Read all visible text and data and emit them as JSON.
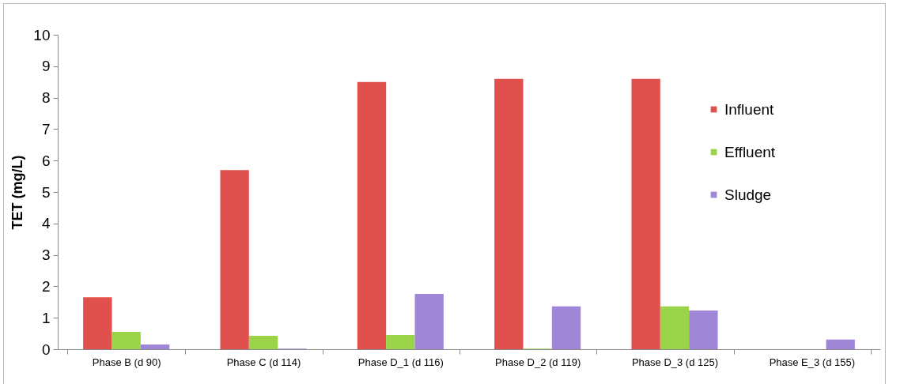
{
  "chart_data": {
    "type": "bar",
    "ylabel": "TET (mg/L)",
    "categories": [
      "Phase B (d 90)",
      "Phase C (d 114)",
      "Phase D_1 (d 116)",
      "Phase D_2 (d 119)",
      "Phase D_3 (d 125)",
      "Phase E_3 (d 155)"
    ],
    "series": [
      {
        "name": "Influent",
        "color": "#e0504c",
        "values": [
          1.65,
          5.7,
          8.5,
          8.6,
          8.6,
          null
        ]
      },
      {
        "name": "Effluent",
        "color": "#9bd44a",
        "values": [
          0.55,
          0.43,
          0.45,
          0.02,
          1.36,
          0
        ]
      },
      {
        "name": "Sludge",
        "color": "#9f86d6",
        "values": [
          0.15,
          0.02,
          1.76,
          1.36,
          1.23,
          0.31
        ]
      }
    ],
    "ylim": [
      0,
      10
    ],
    "yticks": [
      0,
      1,
      2,
      3,
      4,
      5,
      6,
      7,
      8,
      9,
      10
    ],
    "grid": false,
    "legend": "top right"
  }
}
